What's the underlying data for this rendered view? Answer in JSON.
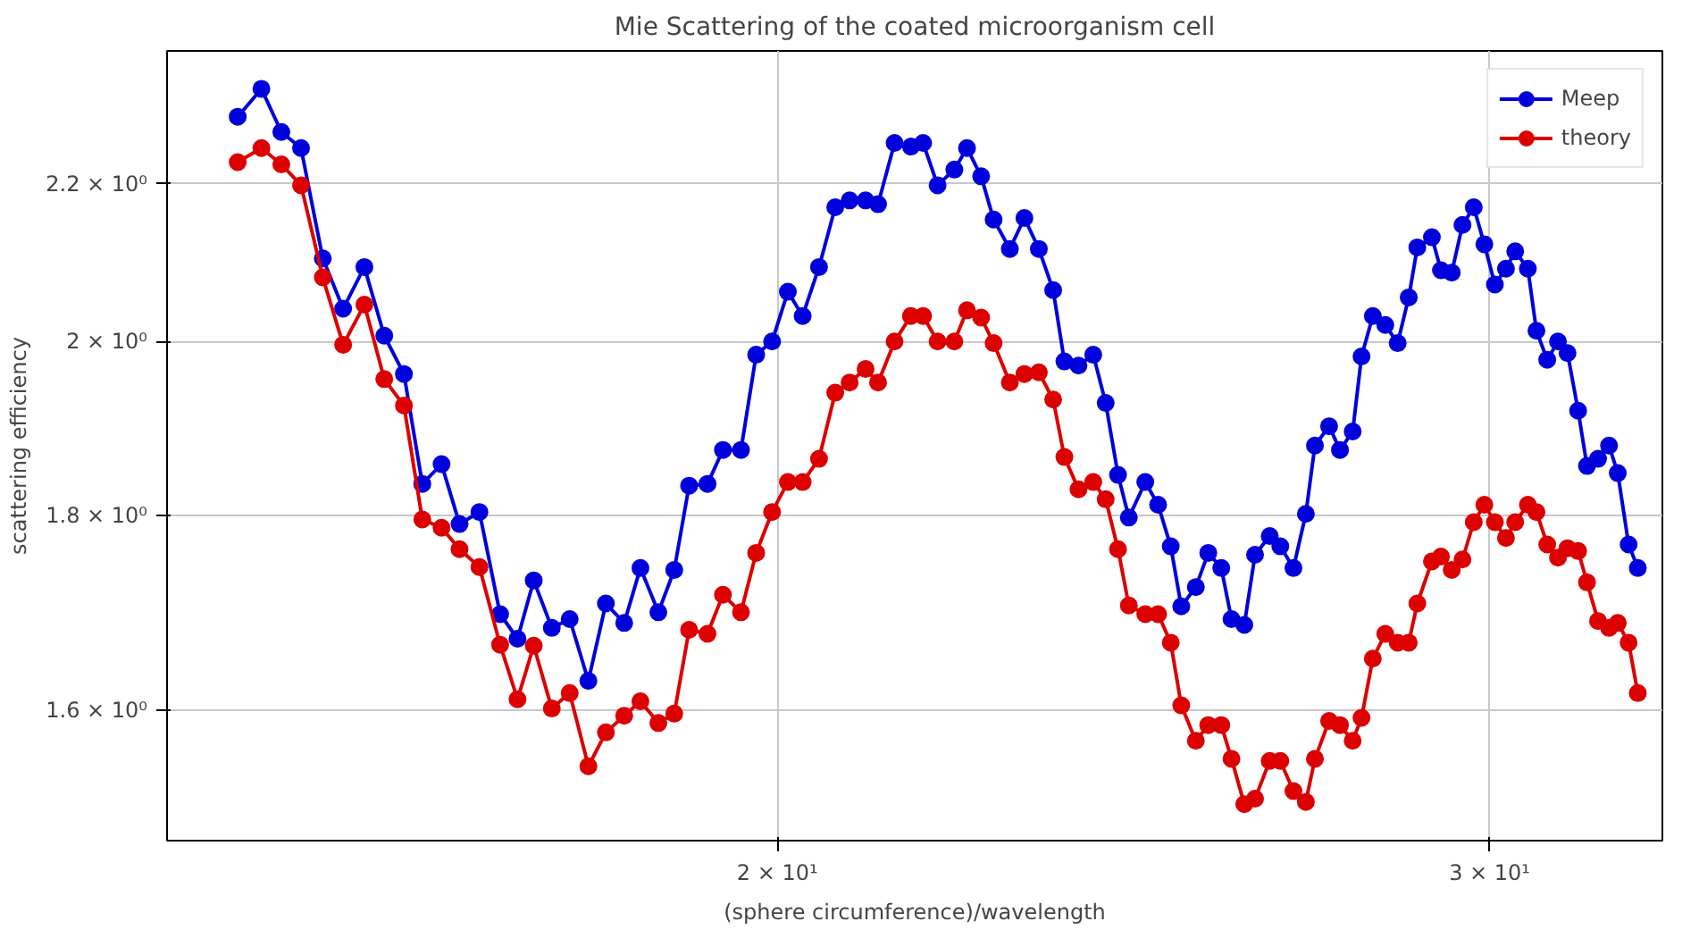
{
  "chart_data": {
    "type": "line",
    "title": "Mie Scattering of the coated microorganism cell",
    "xlabel": "(sphere circumference)/wavelength",
    "ylabel": "scattering efficiency",
    "x": [
      14.71,
      14.91,
      15.08,
      15.25,
      15.44,
      15.62,
      15.81,
      15.99,
      16.17,
      16.34,
      16.52,
      16.69,
      16.88,
      17.08,
      17.25,
      17.41,
      17.59,
      17.77,
      17.96,
      18.14,
      18.33,
      18.5,
      18.69,
      18.86,
      19.02,
      19.22,
      19.39,
      19.59,
      19.76,
      19.94,
      20.12,
      20.29,
      20.48,
      20.67,
      20.84,
      21.03,
      21.18,
      21.38,
      21.58,
      21.73,
      21.91,
      22.12,
      22.28,
      22.46,
      22.62,
      22.83,
      23.02,
      23.21,
      23.4,
      23.55,
      23.74,
      23.94,
      24.11,
      24.28,
      24.43,
      24.66,
      24.84,
      25.02,
      25.17,
      25.38,
      25.56,
      25.75,
      25.9,
      26.09,
      26.25,
      26.47,
      26.63,
      26.83,
      27.02,
      27.16,
      27.38,
      27.55,
      27.75,
      27.89,
      28.07,
      28.27,
      28.47,
      28.65,
      28.79,
      29.03,
      29.18,
      29.36,
      29.54,
      29.73,
      29.91,
      30.09,
      30.28,
      30.44,
      30.66,
      30.81,
      31.0,
      31.19,
      31.36,
      31.55,
      31.71,
      31.91,
      32.11,
      32.27,
      32.47,
      32.64
    ],
    "series": [
      {
        "name": "Meep",
        "color": "#0000dd",
        "values": [
          2.291,
          2.33,
          2.27,
          2.248,
          2.103,
          2.04,
          2.092,
          2.007,
          1.961,
          1.835,
          1.857,
          1.791,
          1.804,
          1.696,
          1.671,
          1.731,
          1.682,
          1.691,
          1.629,
          1.707,
          1.687,
          1.744,
          1.698,
          1.742,
          1.833,
          1.835,
          1.873,
          1.873,
          1.984,
          2.0,
          2.061,
          2.031,
          2.092,
          2.169,
          2.178,
          2.178,
          2.173,
          2.255,
          2.25,
          2.255,
          2.198,
          2.219,
          2.248,
          2.21,
          2.153,
          2.115,
          2.155,
          2.115,
          2.063,
          1.976,
          1.971,
          1.984,
          1.927,
          1.845,
          1.798,
          1.837,
          1.812,
          1.767,
          1.704,
          1.724,
          1.76,
          1.744,
          1.691,
          1.685,
          1.758,
          1.778,
          1.767,
          1.744,
          1.802,
          1.878,
          1.9,
          1.873,
          1.894,
          1.982,
          2.031,
          2.02,
          1.998,
          2.054,
          2.117,
          2.13,
          2.088,
          2.085,
          2.146,
          2.169,
          2.121,
          2.07,
          2.09,
          2.112,
          2.09,
          2.013,
          1.978,
          2.0,
          1.986,
          1.918,
          1.855,
          1.863,
          1.878,
          1.847,
          1.769,
          1.744
        ]
      },
      {
        "name": "theory",
        "color": "#dd0000",
        "values": [
          2.229,
          2.248,
          2.226,
          2.198,
          2.079,
          1.996,
          2.045,
          1.955,
          1.924,
          1.796,
          1.787,
          1.764,
          1.745,
          1.665,
          1.611,
          1.664,
          1.602,
          1.617,
          1.547,
          1.579,
          1.595,
          1.609,
          1.588,
          1.597,
          1.68,
          1.676,
          1.716,
          1.698,
          1.76,
          1.804,
          1.837,
          1.837,
          1.863,
          1.939,
          1.951,
          1.967,
          1.951,
          2.0,
          2.031,
          2.031,
          2.0,
          2.0,
          2.038,
          2.029,
          1.998,
          1.951,
          1.961,
          1.963,
          1.931,
          1.865,
          1.829,
          1.837,
          1.818,
          1.764,
          1.705,
          1.696,
          1.696,
          1.667,
          1.605,
          1.571,
          1.586,
          1.586,
          1.554,
          1.512,
          1.517,
          1.552,
          1.552,
          1.524,
          1.514,
          1.554,
          1.59,
          1.586,
          1.571,
          1.593,
          1.651,
          1.676,
          1.667,
          1.667,
          1.707,
          1.751,
          1.756,
          1.742,
          1.753,
          1.793,
          1.812,
          1.793,
          1.776,
          1.793,
          1.812,
          1.804,
          1.769,
          1.755,
          1.765,
          1.762,
          1.729,
          1.689,
          1.682,
          1.687,
          1.667,
          1.617
        ]
      }
    ],
    "log": "xy",
    "xlim": [
      14.13,
      33.1
    ],
    "ylim": [
      1.479,
      2.384
    ],
    "xticks": [
      {
        "value": 20,
        "label": "2 × 10¹"
      },
      {
        "value": 30,
        "label": "3 × 10¹"
      }
    ],
    "yticks": [
      {
        "value": 1.6,
        "label": "1.6 × 10⁰"
      },
      {
        "value": 1.8,
        "label": "1.8 × 10⁰"
      },
      {
        "value": 2,
        "label": "2 × 10⁰"
      },
      {
        "value": 2.2,
        "label": "2.2 × 10⁰"
      }
    ],
    "grid": true,
    "legend": "top right",
    "marker": "circle",
    "line_style": "solid"
  }
}
